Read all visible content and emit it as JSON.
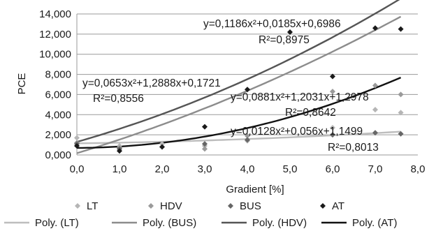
{
  "chart_data": {
    "type": "scatter",
    "xlabel": "Gradient [%]",
    "ylabel": "PCE",
    "xlim": [
      0,
      8
    ],
    "ylim": [
      0,
      14
    ],
    "x_ticks": [
      "0,0",
      "1,0",
      "2,0",
      "3,0",
      "4,0",
      "5,0",
      "6,0",
      "7,0",
      "8,0"
    ],
    "y_ticks": [
      "0,000",
      "2,000",
      "4,000",
      "6,000",
      "8,000",
      "10,000",
      "12,000",
      "14,000"
    ],
    "grid": "horizontal",
    "legend_position": "bottom",
    "series": [
      {
        "name": "LT",
        "color": "#b5b5b5",
        "marker": "diamond",
        "points": [
          [
            0,
            1.7
          ],
          [
            1,
            0.9
          ],
          [
            2,
            1.1
          ],
          [
            3,
            0.9
          ],
          [
            4,
            1.4
          ],
          [
            6,
            2.7
          ],
          [
            7,
            4.5
          ],
          [
            7.6,
            4.2
          ]
        ]
      },
      {
        "name": "HDV",
        "color": "#9a9a9a",
        "marker": "diamond",
        "points": [
          [
            0,
            1.2
          ],
          [
            1,
            0.7
          ],
          [
            3,
            0.6
          ],
          [
            4,
            1.9
          ],
          [
            6,
            6.3
          ],
          [
            7,
            6.9
          ],
          [
            7.6,
            6.0
          ]
        ]
      },
      {
        "name": "BUS",
        "color": "#666666",
        "marker": "diamond",
        "points": [
          [
            0,
            1.1
          ],
          [
            1,
            0.6
          ],
          [
            3,
            1.1
          ],
          [
            4,
            1.5
          ],
          [
            6,
            2.0
          ],
          [
            7,
            2.2
          ],
          [
            7.6,
            2.1
          ]
        ]
      },
      {
        "name": "AT",
        "color": "#1a1a1a",
        "marker": "diamond",
        "points": [
          [
            0,
            0.9
          ],
          [
            1,
            0.4
          ],
          [
            2,
            0.8
          ],
          [
            3,
            2.8
          ],
          [
            4,
            6.5
          ],
          [
            5,
            12.2
          ],
          [
            6,
            7.8
          ],
          [
            7,
            12.6
          ],
          [
            7.6,
            12.5
          ]
        ]
      }
    ],
    "trendlines": [
      {
        "name": "Poly. (LT)",
        "color": "#bdbdbd",
        "a": 0.0128,
        "b": 0.056,
        "c": 1.1499
      },
      {
        "name": "Poly. (BUS)",
        "color": "#8c8c8c",
        "a": 0.0653,
        "b": 1.2888,
        "c": 0.1721
      },
      {
        "name": "Poly. (HDV)",
        "color": "#555555",
        "a": 0.0881,
        "b": 1.2031,
        "c": 1.2978
      },
      {
        "name": "Poly. (AT)",
        "color": "#111111",
        "a": 0.1186,
        "b": 0.0185,
        "c": 0.6986
      }
    ],
    "trend_x_range": [
      0,
      7.6
    ],
    "annotations": [
      {
        "id": "at",
        "equation": "y=0,1186x²+0,0185x+0,6986",
        "r2": "R²=0,8975"
      },
      {
        "id": "bus",
        "equation": "y=0,0653x²+1,2888x+0,1721",
        "r2": "R²=0,8556"
      },
      {
        "id": "hdv",
        "equation": "y=0,0881x²+1,2031x+1,2978",
        "r2": "R²=0,8642"
      },
      {
        "id": "lt",
        "equation": "y=0,0128x²+0,056x+1,1499",
        "r2": "R²=0,8013"
      }
    ],
    "legend_markers": [
      "LT",
      "HDV",
      "BUS",
      "AT"
    ],
    "legend_lines": [
      "Poly. (LT)",
      "Poly. (BUS)",
      "Poly. (HDV)",
      "Poly. (AT)"
    ]
  }
}
